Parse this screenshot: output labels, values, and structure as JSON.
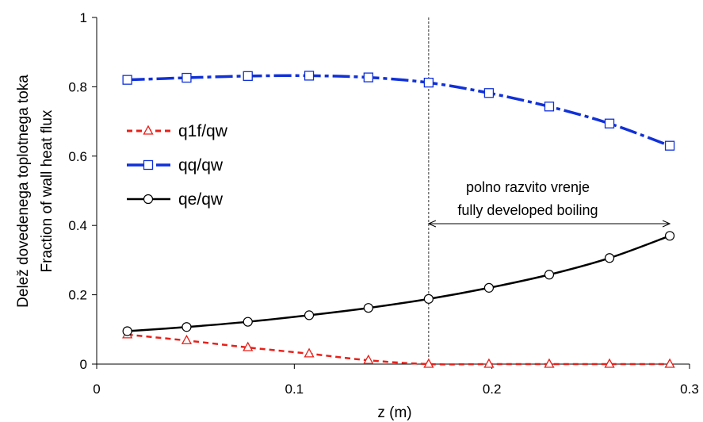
{
  "colors": {
    "q1f": "#e8201a",
    "qq": "#1030d8",
    "qe": "#000000",
    "axis": "#000000"
  },
  "chart_data": {
    "type": "line",
    "xlabel": "z (m)",
    "ylabel_lines": [
      "Delež dovedenega toplotnega toka",
      "Fraction of wall heat flux"
    ],
    "xlim": [
      0,
      0.3
    ],
    "ylim": [
      0,
      1
    ],
    "x_ticks": [
      "0",
      "0.1",
      "0.2",
      "0.3"
    ],
    "y_ticks": [
      "0",
      "0.2",
      "0.4",
      "0.6",
      "0.8",
      "1"
    ],
    "x_tick_values": [
      0,
      0.1,
      0.2,
      0.3
    ],
    "y_tick_values": [
      0,
      0.2,
      0.4,
      0.6,
      0.8,
      1
    ],
    "grid": false,
    "legend_placement": "left",
    "x": [
      0.0155,
      0.0455,
      0.0765,
      0.1075,
      0.1375,
      0.168,
      0.1985,
      0.229,
      0.2595,
      0.29
    ],
    "series": [
      {
        "name": "q1f/qw",
        "color": "#e8201a",
        "line": "dashed",
        "marker": "triangle",
        "values": [
          0.085,
          0.068,
          0.048,
          0.03,
          0.011,
          0.0,
          0.0,
          0.0,
          0.0,
          0.0
        ]
      },
      {
        "name": "qq/qw",
        "color": "#1030d8",
        "line": "dash-dot",
        "marker": "square",
        "values": [
          0.82,
          0.826,
          0.831,
          0.832,
          0.827,
          0.812,
          0.782,
          0.743,
          0.694,
          0.63
        ]
      },
      {
        "name": "qe/qw",
        "color": "#000000",
        "line": "solid",
        "marker": "circle",
        "values": [
          0.095,
          0.107,
          0.122,
          0.141,
          0.162,
          0.188,
          0.22,
          0.258,
          0.306,
          0.37
        ]
      }
    ],
    "annotation": {
      "x_line": 0.168,
      "arrow_from": 0.168,
      "arrow_to": 0.29,
      "arrow_y": 0.405,
      "text_lines": [
        "polno razvito vrenje",
        "fully developed boiling"
      ]
    }
  }
}
